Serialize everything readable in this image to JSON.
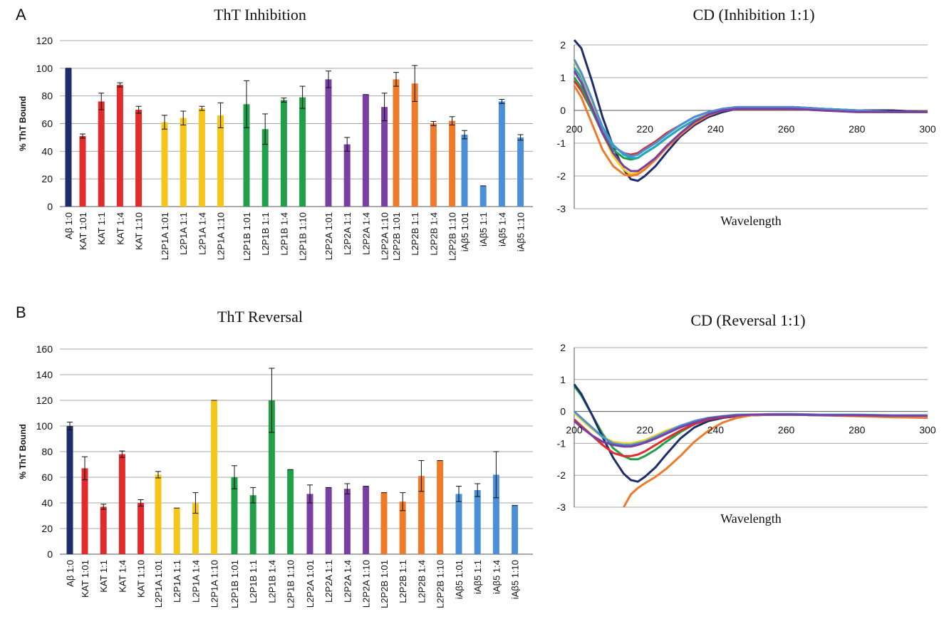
{
  "panels": {
    "a": "A",
    "b": "B"
  },
  "chart_data": [
    {
      "type": "bar",
      "title": "ThT Inhibition",
      "ylabel": "% ThT Bound",
      "ylim": [
        0,
        120
      ],
      "yticks": [
        0,
        20,
        40,
        60,
        80,
        100,
        120
      ],
      "grid": true,
      "categories": [
        "Aβ 1:0",
        "KAT 1:01",
        "KAT 1:1",
        "KAT 1:4",
        "KAT 1:10",
        "L2P1A 1:01",
        "L2P1A 1:1",
        "L2P1A 1:4",
        "L2P1A 1:10",
        "L2P1B 1:01",
        "L2P1B 1:1",
        "L2P1B 1:4",
        "L2P1B 1:10",
        "L2P2A 1:01",
        "L2P2A 1:1",
        "L2P2A 1:4",
        "L2P2A 1:10",
        "L2P2B 1:01",
        "L2P2B 1:1",
        "L2P2B 1:4",
        "L2P2B 1:10",
        "iAβ5 1:01",
        "iAβ5 1:1",
        "iAβ5 1:4",
        "iAβ5 1:10"
      ],
      "groups": [
        1,
        4,
        4,
        4,
        4,
        4,
        4
      ],
      "values": [
        100,
        51,
        76,
        88,
        70,
        61,
        64,
        71,
        66,
        74,
        56,
        77,
        79,
        92,
        45,
        81,
        72,
        92,
        89,
        60,
        62,
        52,
        15,
        76,
        50
      ],
      "errors": [
        0,
        1.5,
        6,
        1.5,
        2.5,
        5,
        5,
        1.5,
        9,
        17,
        11,
        1.5,
        8,
        6,
        5,
        0.5,
        10,
        5,
        13,
        1.5,
        3,
        3,
        0.5,
        1.5,
        2
      ],
      "colors": [
        "#1f2d6b",
        "#e32b2b",
        "#e32b2b",
        "#e32b2b",
        "#e32b2b",
        "#f5c518",
        "#f5c518",
        "#f5c518",
        "#f5c518",
        "#21a049",
        "#21a049",
        "#21a049",
        "#21a049",
        "#7a3fa3",
        "#7a3fa3",
        "#7a3fa3",
        "#7a3fa3",
        "#ef7a2a",
        "#ef7a2a",
        "#ef7a2a",
        "#ef7a2a",
        "#4a8fd8",
        "#4a8fd8",
        "#4a8fd8",
        "#4a8fd8"
      ]
    },
    {
      "type": "line",
      "title": "CD (Inhibition 1:1)",
      "xlabel": "Wavelength",
      "xlim": [
        200,
        300
      ],
      "ylim": [
        -3,
        2
      ],
      "xticks": [
        200,
        220,
        240,
        260,
        280,
        300
      ],
      "yticks": [
        -3,
        -2,
        -1,
        0,
        1,
        2
      ],
      "grid": true,
      "series": [
        {
          "color": "#1f2d6b",
          "x": [
            200,
            202,
            205,
            208,
            211,
            214,
            216,
            218,
            220,
            223,
            226,
            230,
            234,
            238,
            242,
            246,
            250,
            256,
            262,
            270,
            280,
            290,
            300
          ],
          "y": [
            2.15,
            1.9,
            0.9,
            -0.2,
            -1.1,
            -1.8,
            -2.1,
            -2.15,
            -2.0,
            -1.7,
            -1.3,
            -0.8,
            -0.45,
            -0.2,
            -0.05,
            0.05,
            0.05,
            0.05,
            0.1,
            0.05,
            0.0,
            0.0,
            -0.05
          ]
        },
        {
          "color": "#e32b2b",
          "x": [
            200,
            202,
            205,
            208,
            211,
            214,
            216,
            218,
            220,
            223,
            226,
            230,
            234,
            238,
            242,
            246,
            250,
            256,
            262,
            270,
            280,
            290,
            300
          ],
          "y": [
            0.9,
            0.6,
            0.0,
            -0.6,
            -1.1,
            -1.3,
            -1.35,
            -1.3,
            -1.15,
            -0.95,
            -0.7,
            -0.45,
            -0.2,
            -0.05,
            0.05,
            0.1,
            0.1,
            0.1,
            0.1,
            0.05,
            0.0,
            -0.05,
            -0.05
          ]
        },
        {
          "color": "#21a049",
          "x": [
            200,
            202,
            205,
            208,
            211,
            214,
            216,
            218,
            220,
            223,
            226,
            230,
            234,
            238,
            242,
            246,
            250,
            256,
            262,
            270,
            280,
            290,
            300
          ],
          "y": [
            1.0,
            0.7,
            0.0,
            -0.7,
            -1.2,
            -1.45,
            -1.5,
            -1.45,
            -1.3,
            -1.1,
            -0.85,
            -0.55,
            -0.3,
            -0.12,
            0.0,
            0.05,
            0.05,
            0.05,
            0.05,
            0.05,
            0.0,
            -0.05,
            -0.05
          ]
        },
        {
          "color": "#1fa9b8",
          "x": [
            200,
            202,
            205,
            208,
            211,
            214,
            216,
            218,
            220,
            223,
            226,
            230,
            234,
            238,
            242,
            246,
            250,
            256,
            262,
            270,
            280,
            290,
            300
          ],
          "y": [
            1.3,
            1.0,
            0.3,
            -0.5,
            -1.05,
            -1.35,
            -1.45,
            -1.45,
            -1.3,
            -1.1,
            -0.85,
            -0.55,
            -0.3,
            -0.12,
            0.0,
            0.05,
            0.05,
            0.05,
            0.05,
            0.05,
            0.0,
            -0.05,
            -0.05
          ]
        },
        {
          "color": "#f5d21a",
          "x": [
            200,
            202,
            205,
            208,
            211,
            214,
            216,
            218,
            220,
            223,
            226,
            230,
            234,
            238,
            242,
            246,
            250,
            256,
            262,
            270,
            280,
            290,
            300
          ],
          "y": [
            1.5,
            1.1,
            0.3,
            -0.7,
            -1.4,
            -1.8,
            -1.95,
            -1.9,
            -1.75,
            -1.45,
            -1.1,
            -0.7,
            -0.35,
            -0.1,
            0.0,
            0.05,
            0.05,
            0.05,
            0.05,
            0.0,
            -0.05,
            -0.05,
            -0.05
          ]
        },
        {
          "color": "#4a8fd8",
          "x": [
            200,
            202,
            205,
            208,
            211,
            214,
            216,
            218,
            220,
            223,
            226,
            230,
            234,
            238,
            242,
            246,
            250,
            256,
            262,
            270,
            280,
            290,
            300
          ],
          "y": [
            1.55,
            1.15,
            0.35,
            -0.55,
            -1.1,
            -1.3,
            -1.4,
            -1.35,
            -1.2,
            -1.0,
            -0.75,
            -0.45,
            -0.2,
            -0.05,
            0.05,
            0.1,
            0.1,
            0.1,
            0.1,
            0.05,
            0.0,
            -0.05,
            -0.05
          ]
        },
        {
          "color": "#ef7a2a",
          "x": [
            200,
            202,
            205,
            208,
            211,
            214,
            216,
            218,
            220,
            223,
            226,
            230,
            234,
            238,
            242,
            246,
            250,
            256,
            262,
            270,
            280,
            290,
            300
          ],
          "y": [
            0.75,
            0.4,
            -0.4,
            -1.2,
            -1.7,
            -1.95,
            -2.0,
            -1.95,
            -1.8,
            -1.5,
            -1.15,
            -0.75,
            -0.4,
            -0.15,
            0.0,
            0.05,
            0.05,
            0.05,
            0.05,
            0.0,
            -0.05,
            -0.05,
            -0.05
          ]
        },
        {
          "color": "#7a3fa3",
          "x": [
            200,
            202,
            205,
            208,
            211,
            214,
            216,
            218,
            220,
            223,
            226,
            230,
            234,
            238,
            242,
            246,
            250,
            256,
            262,
            270,
            280,
            290,
            300
          ],
          "y": [
            1.2,
            0.85,
            0.1,
            -0.7,
            -1.3,
            -1.7,
            -1.85,
            -1.85,
            -1.7,
            -1.45,
            -1.1,
            -0.7,
            -0.35,
            -0.12,
            0.0,
            0.05,
            0.05,
            0.05,
            0.05,
            0.0,
            -0.05,
            -0.05,
            -0.05
          ]
        }
      ]
    },
    {
      "type": "bar",
      "title": "ThT Reversal",
      "ylabel": "% ThT Bound",
      "ylim": [
        0,
        160
      ],
      "yticks": [
        0,
        20,
        40,
        60,
        80,
        100,
        120,
        140,
        160
      ],
      "grid": true,
      "categories": [
        "Aβ 1:0",
        "KAT 1:01",
        "KAT 1:1",
        "KAT 1:4",
        "KAT 1:10",
        "L2P1A 1:01",
        "L2P1A 1:1",
        "L2P1A 1:4",
        "L2P1A 1:10",
        "L2P1B 1:01",
        "L2P1B 1:1",
        "L2P1B 1:4",
        "L2P1B 1:10",
        "L2P2A 1:01",
        "L2P2A 1:1",
        "L2P2A 1:4",
        "L2P2A 1:10",
        "L2P2B 1:01",
        "L2P2B 1:1",
        "L2P2B 1:4",
        "L2P2B 1:10",
        "iAβ5 1:01",
        "iAβ5 1:1",
        "iAβ5 1:4",
        "iAβ5 1:10"
      ],
      "groups": [
        1,
        4,
        4,
        4,
        4,
        4,
        4
      ],
      "values": [
        100,
        67,
        37,
        78,
        40,
        62,
        36,
        40,
        120,
        60,
        46,
        120,
        66,
        47,
        52,
        51,
        53,
        48,
        41,
        61,
        73,
        47,
        50,
        62,
        38
      ],
      "errors": [
        3,
        9,
        2,
        2.5,
        2.5,
        2.5,
        0.5,
        8,
        0.5,
        9,
        6,
        25,
        0.5,
        7,
        0.5,
        4,
        0.5,
        0.5,
        7,
        12,
        0.5,
        6,
        5,
        18,
        0.5
      ],
      "colors": [
        "#1f2d6b",
        "#e32b2b",
        "#e32b2b",
        "#e32b2b",
        "#e32b2b",
        "#f5c518",
        "#f5c518",
        "#f5c518",
        "#f5c518",
        "#21a049",
        "#21a049",
        "#21a049",
        "#21a049",
        "#7a3fa3",
        "#7a3fa3",
        "#7a3fa3",
        "#7a3fa3",
        "#ef7a2a",
        "#ef7a2a",
        "#ef7a2a",
        "#ef7a2a",
        "#4a8fd8",
        "#4a8fd8",
        "#4a8fd8",
        "#4a8fd8"
      ]
    },
    {
      "type": "line",
      "title": "CD (Reversal 1:1)",
      "xlabel": "Wavelength",
      "xlim": [
        200,
        300
      ],
      "ylim": [
        -3,
        2
      ],
      "xticks": [
        200,
        220,
        240,
        260,
        280,
        300
      ],
      "yticks": [
        -3,
        -2,
        -1,
        0,
        1,
        2
      ],
      "grid": true,
      "series": [
        {
          "color": "#21a049",
          "x": [
            200,
            202,
            205,
            208,
            211,
            214,
            216,
            218,
            220,
            223,
            226,
            230,
            234,
            238,
            242,
            246,
            250,
            256,
            262,
            270,
            280,
            290,
            300
          ],
          "y": [
            0.8,
            0.5,
            -0.1,
            -0.7,
            -1.15,
            -1.4,
            -1.5,
            -1.5,
            -1.4,
            -1.2,
            -0.95,
            -0.65,
            -0.4,
            -0.25,
            -0.15,
            -0.12,
            -0.1,
            -0.1,
            -0.1,
            -0.12,
            -0.12,
            -0.15,
            -0.15
          ]
        },
        {
          "color": "#1f2d6b",
          "x": [
            200,
            202,
            205,
            208,
            211,
            214,
            216,
            218,
            220,
            223,
            226,
            230,
            234,
            238,
            242,
            246,
            250,
            256,
            262,
            270,
            280,
            290,
            300
          ],
          "y": [
            0.85,
            0.55,
            -0.1,
            -0.8,
            -1.45,
            -1.95,
            -2.15,
            -2.2,
            -2.05,
            -1.75,
            -1.35,
            -0.85,
            -0.5,
            -0.3,
            -0.2,
            -0.15,
            -0.12,
            -0.1,
            -0.1,
            -0.12,
            -0.12,
            -0.15,
            -0.15
          ]
        },
        {
          "color": "#e32b2b",
          "x": [
            200,
            202,
            205,
            208,
            211,
            214,
            216,
            218,
            220,
            223,
            226,
            230,
            234,
            238,
            242,
            246,
            250,
            256,
            262,
            270,
            280,
            290,
            300
          ],
          "y": [
            -0.25,
            -0.45,
            -0.75,
            -1.05,
            -1.3,
            -1.4,
            -1.4,
            -1.35,
            -1.25,
            -1.05,
            -0.85,
            -0.6,
            -0.4,
            -0.25,
            -0.18,
            -0.14,
            -0.12,
            -0.1,
            -0.1,
            -0.12,
            -0.12,
            -0.15,
            -0.15
          ]
        },
        {
          "color": "#ef7a2a",
          "x": [
            214,
            216,
            218,
            220,
            223,
            226,
            230,
            234,
            238,
            242,
            246,
            250,
            256,
            262,
            270,
            280,
            290,
            300
          ],
          "y": [
            -3.0,
            -2.6,
            -2.4,
            -2.25,
            -2.05,
            -1.8,
            -1.4,
            -0.95,
            -0.6,
            -0.35,
            -0.2,
            -0.12,
            -0.1,
            -0.1,
            -0.12,
            -0.15,
            -0.18,
            -0.2
          ]
        },
        {
          "color": "#f5d21a",
          "x": [
            200,
            202,
            205,
            208,
            211,
            214,
            216,
            218,
            220,
            223,
            226,
            230,
            234,
            238,
            242,
            246,
            250,
            256,
            262,
            270,
            280,
            290,
            300
          ],
          "y": [
            -0.05,
            -0.25,
            -0.55,
            -0.8,
            -0.95,
            -1.0,
            -1.0,
            -0.95,
            -0.9,
            -0.75,
            -0.6,
            -0.45,
            -0.3,
            -0.2,
            -0.15,
            -0.12,
            -0.1,
            -0.1,
            -0.1,
            -0.12,
            -0.12,
            -0.15,
            -0.15
          ]
        },
        {
          "color": "#4a8fd8",
          "x": [
            200,
            202,
            205,
            208,
            211,
            214,
            216,
            218,
            220,
            223,
            226,
            230,
            234,
            238,
            242,
            246,
            250,
            256,
            262,
            270,
            280,
            290,
            300
          ],
          "y": [
            0.0,
            -0.2,
            -0.5,
            -0.8,
            -1.0,
            -1.05,
            -1.05,
            -1.0,
            -0.95,
            -0.8,
            -0.65,
            -0.45,
            -0.3,
            -0.2,
            -0.15,
            -0.1,
            -0.1,
            -0.08,
            -0.08,
            -0.1,
            -0.1,
            -0.12,
            -0.12
          ]
        },
        {
          "color": "#7a3fa3",
          "x": [
            200,
            202,
            205,
            208,
            211,
            214,
            216,
            218,
            220,
            223,
            226,
            230,
            234,
            238,
            242,
            246,
            250,
            256,
            262,
            270,
            280,
            290,
            300
          ],
          "y": [
            -0.3,
            -0.5,
            -0.75,
            -0.95,
            -1.05,
            -1.1,
            -1.1,
            -1.05,
            -0.98,
            -0.85,
            -0.7,
            -0.5,
            -0.35,
            -0.22,
            -0.16,
            -0.13,
            -0.1,
            -0.1,
            -0.1,
            -0.12,
            -0.12,
            -0.14,
            -0.14
          ]
        }
      ]
    }
  ]
}
